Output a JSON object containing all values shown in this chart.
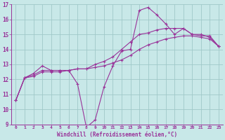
{
  "background_color": "#c8e8e8",
  "grid_color": "#a0c8c8",
  "line_color": "#993399",
  "xlabel": "Windchill (Refroidissement éolien,°C)",
  "xlim": [
    -0.5,
    23.5
  ],
  "ylim": [
    9,
    17
  ],
  "yticks": [
    9,
    10,
    11,
    12,
    13,
    14,
    15,
    16,
    17
  ],
  "xticks": [
    0,
    1,
    2,
    3,
    4,
    5,
    6,
    7,
    8,
    9,
    10,
    11,
    12,
    13,
    14,
    15,
    16,
    17,
    18,
    19,
    20,
    21,
    22,
    23
  ],
  "series1_volatile": [
    10.6,
    12.1,
    12.4,
    12.9,
    12.6,
    12.6,
    12.6,
    11.7,
    8.8,
    9.3,
    11.5,
    12.9,
    13.9,
    14.0,
    16.6,
    16.8,
    16.3,
    15.7,
    15.0,
    15.4,
    15.0,
    14.9,
    14.9,
    14.2
  ],
  "series2_smooth": [
    10.6,
    12.1,
    12.2,
    12.5,
    12.5,
    12.5,
    12.6,
    12.7,
    12.7,
    12.8,
    12.9,
    13.1,
    13.3,
    13.6,
    14.0,
    14.3,
    14.5,
    14.7,
    14.8,
    14.9,
    14.9,
    14.8,
    14.7,
    14.2
  ],
  "series3_mid": [
    10.6,
    12.1,
    12.3,
    12.6,
    12.6,
    12.6,
    12.6,
    12.7,
    12.7,
    13.0,
    13.2,
    13.5,
    14.0,
    14.5,
    15.0,
    15.1,
    15.3,
    15.4,
    15.4,
    15.4,
    15.0,
    15.0,
    14.8,
    14.2
  ]
}
